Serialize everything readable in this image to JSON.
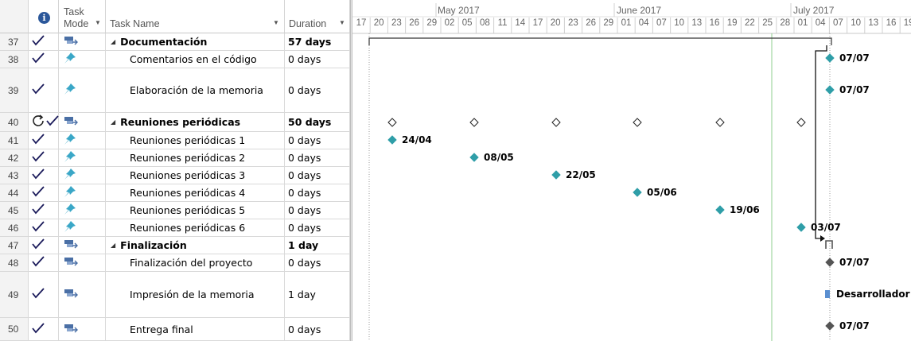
{
  "header": {
    "info_symbol": "i",
    "task_mode_label_line1": "Task",
    "task_mode_label_line2": "Mode",
    "task_name_label": "Task Name",
    "duration_label": "Duration"
  },
  "timeline": {
    "months": [
      "May 2017",
      "June 2017",
      "July 2017"
    ],
    "days": [
      "17",
      "20",
      "23",
      "26",
      "29",
      "02",
      "05",
      "08",
      "11",
      "14",
      "17",
      "20",
      "23",
      "26",
      "29",
      "01",
      "04",
      "07",
      "10",
      "13",
      "16",
      "19",
      "22",
      "25",
      "28",
      "01",
      "04",
      "07",
      "10",
      "13",
      "16",
      "19"
    ]
  },
  "tasks": [
    {
      "id": "37",
      "indicator": "check",
      "mode": "auto",
      "name": "Documentación",
      "duration": "57 days",
      "summary": true,
      "indent": 0
    },
    {
      "id": "38",
      "indicator": "check",
      "mode": "manual",
      "name": "Comentarios en el código",
      "duration": "0 days",
      "summary": false,
      "indent": 1
    },
    {
      "id": "39",
      "indicator": "check",
      "mode": "manual",
      "name": "Elaboración de la memoria",
      "duration": "0 days",
      "summary": false,
      "indent": 1
    },
    {
      "id": "40",
      "indicator": "recurring-check",
      "mode": "auto",
      "name": "Reuniones periódicas",
      "duration": "50 days",
      "summary": true,
      "indent": 0
    },
    {
      "id": "41",
      "indicator": "check",
      "mode": "manual",
      "name": "Reuniones periódicas 1",
      "duration": "0 days",
      "summary": false,
      "indent": 1
    },
    {
      "id": "42",
      "indicator": "check",
      "mode": "manual",
      "name": "Reuniones periódicas 2",
      "duration": "0 days",
      "summary": false,
      "indent": 1
    },
    {
      "id": "43",
      "indicator": "check",
      "mode": "manual",
      "name": "Reuniones periódicas 3",
      "duration": "0 days",
      "summary": false,
      "indent": 1
    },
    {
      "id": "44",
      "indicator": "check",
      "mode": "manual",
      "name": "Reuniones periódicas 4",
      "duration": "0 days",
      "summary": false,
      "indent": 1
    },
    {
      "id": "45",
      "indicator": "check",
      "mode": "manual",
      "name": "Reuniones periódicas 5",
      "duration": "0 days",
      "summary": false,
      "indent": 1
    },
    {
      "id": "46",
      "indicator": "check",
      "mode": "manual",
      "name": "Reuniones periódicas 6",
      "duration": "0 days",
      "summary": false,
      "indent": 1
    },
    {
      "id": "47",
      "indicator": "check",
      "mode": "auto",
      "name": "Finalización",
      "duration": "1 day",
      "summary": true,
      "indent": 0
    },
    {
      "id": "48",
      "indicator": "check",
      "mode": "auto",
      "name": "Finalización del proyecto",
      "duration": "0 days",
      "summary": false,
      "indent": 1
    },
    {
      "id": "49",
      "indicator": "check",
      "mode": "auto",
      "name": "Impresión de la memoria",
      "duration": "1 day",
      "summary": false,
      "indent": 1
    },
    {
      "id": "50",
      "indicator": "check",
      "mode": "auto",
      "name": "Entrega final",
      "duration": "0 days",
      "summary": false,
      "indent": 1
    }
  ],
  "gantt_labels": {
    "m38": "07/07",
    "m39": "07/07",
    "m41": "24/04",
    "m42": "08/05",
    "m43": "22/05",
    "m44": "05/06",
    "m45": "19/06",
    "m46": "03/07",
    "m48": "07/07",
    "t49": "Desarrollador",
    "m50": "07/07"
  },
  "colors": {
    "milestone_manual": "#2f9ea8",
    "milestone_auto": "#555555",
    "check": "#1a1a5a",
    "mode_icon": "#4a6fa5",
    "pin": "#3aa7c7",
    "today_line": "#8fcf8f"
  }
}
